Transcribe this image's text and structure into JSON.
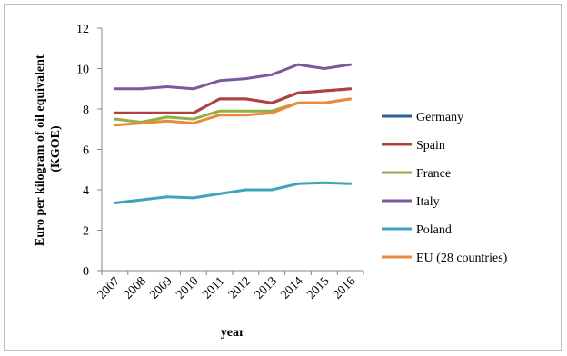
{
  "chart_data": {
    "type": "line",
    "title": "",
    "xlabel": "year",
    "ylabel": [
      "Euro per kilogram of oil equivalent",
      "(KGOE)"
    ],
    "ylim": [
      0,
      12
    ],
    "yticks": [
      0,
      2,
      4,
      6,
      8,
      10,
      12
    ],
    "grid": false,
    "legend_position": "right",
    "categories": [
      "2007",
      "2008",
      "2009",
      "2010",
      "2011",
      "2012",
      "2013",
      "2014",
      "2015",
      "2016"
    ],
    "series": [
      {
        "name": "Germany",
        "color": "#2f5f98",
        "values": [
          7.8,
          7.8,
          7.8,
          7.8,
          8.5,
          8.5,
          8.3,
          8.8,
          8.9,
          9.0
        ]
      },
      {
        "name": "Spain",
        "color": "#b3403c",
        "values": [
          7.8,
          7.8,
          7.8,
          7.8,
          8.5,
          8.5,
          8.3,
          8.8,
          8.9,
          9.0
        ]
      },
      {
        "name": "France",
        "color": "#8faf45",
        "values": [
          7.5,
          7.35,
          7.6,
          7.5,
          7.9,
          7.9,
          7.9,
          8.3,
          8.3,
          8.5
        ]
      },
      {
        "name": "Italy",
        "color": "#7a5a9e",
        "values": [
          9.0,
          9.0,
          9.1,
          9.0,
          9.4,
          9.5,
          9.7,
          10.2,
          10.0,
          10.2
        ]
      },
      {
        "name": "Poland",
        "color": "#3ea3bb",
        "values": [
          3.35,
          3.5,
          3.65,
          3.6,
          3.8,
          4.0,
          4.0,
          4.3,
          4.35,
          4.3
        ]
      },
      {
        "name": "EU (28 countries)",
        "color": "#e98a3c",
        "values": [
          7.2,
          7.3,
          7.4,
          7.3,
          7.7,
          7.7,
          7.8,
          8.3,
          8.3,
          8.5
        ]
      }
    ]
  }
}
